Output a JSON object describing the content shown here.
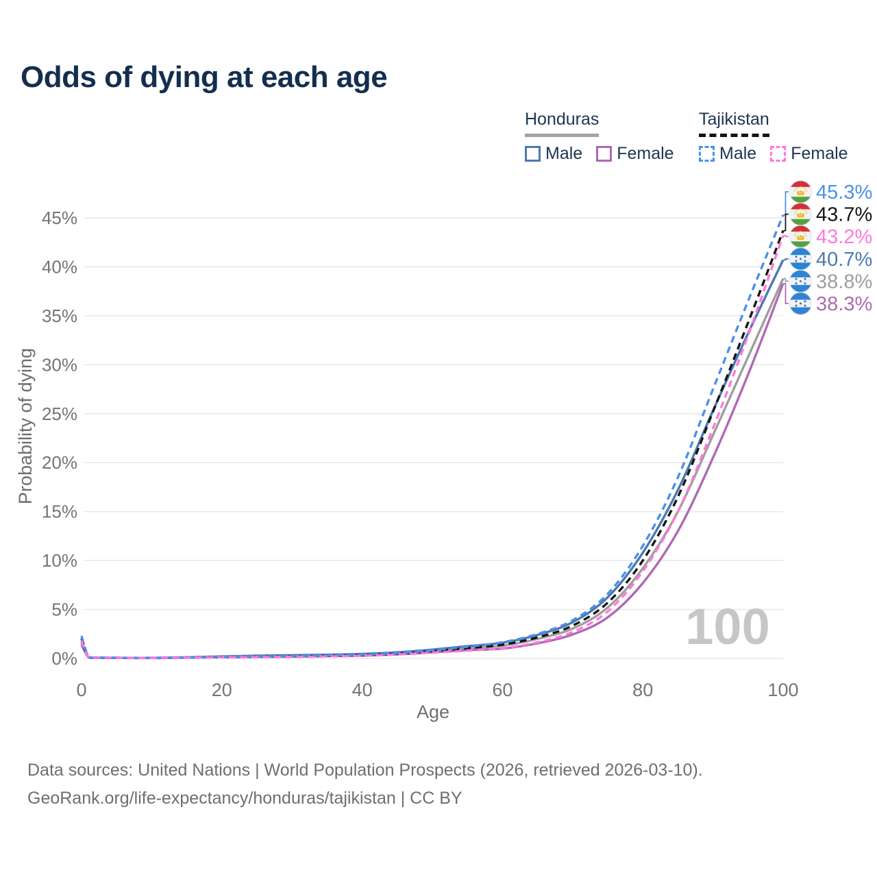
{
  "title": "Odds of dying at each age",
  "watermark": "100",
  "footer": {
    "line1": "Data sources: United Nations | World Population Prospects (2026, retrieved 2026-03-10).",
    "line2": "GeoRank.org/life-expectancy/honduras/tajikistan | CC BY"
  },
  "colors": {
    "title_text": "#132e4f",
    "legend_text": "#1d3553",
    "axis_text": "#747474",
    "axis_title_text": "#6e6e6e",
    "grid": "#e9e9e9",
    "watermark": "#c6c6c6",
    "honduras_male": "#4b79b2",
    "honduras_female": "#ae6ab2",
    "honduras_both": "#9e9e9e",
    "tajikistan_male": "#4b90ea",
    "tajikistan_female": "#ff78dc",
    "tajikistan_both": "#151515"
  },
  "legend": {
    "groups": [
      {
        "name": "Honduras",
        "line_style": "solid",
        "underline_color": "#a3a3a3",
        "items": [
          {
            "label": "Male",
            "color": "#4b79b2",
            "dashed": false
          },
          {
            "label": "Female",
            "color": "#ae6ab2",
            "dashed": false
          }
        ]
      },
      {
        "name": "Tajikistan",
        "line_style": "dashed",
        "underline_color": "#141414",
        "items": [
          {
            "label": "Male",
            "color": "#4b90ea",
            "dashed": true
          },
          {
            "label": "Female",
            "color": "#ff78dc",
            "dashed": true
          }
        ]
      }
    ]
  },
  "chart_data": {
    "type": "line",
    "title": "Odds of dying at each age",
    "xlabel": "Age",
    "ylabel": "Probability of dying",
    "xlim": [
      0,
      100
    ],
    "ylim": [
      0,
      48
    ],
    "grid": true,
    "x_ticks": [
      0,
      20,
      40,
      60,
      80,
      100
    ],
    "y_tick_values": [
      0,
      5,
      10,
      15,
      20,
      25,
      30,
      35,
      40,
      45
    ],
    "y_tick_labels": [
      "0%",
      "5%",
      "10%",
      "15%",
      "20%",
      "25%",
      "30%",
      "35%",
      "40%",
      "45%"
    ],
    "ages": [
      0,
      1,
      2,
      5,
      10,
      15,
      20,
      25,
      30,
      35,
      40,
      45,
      50,
      55,
      60,
      65,
      70,
      75,
      80,
      85,
      90,
      95,
      100
    ],
    "series": [
      {
        "id": "honduras-both",
        "country": "Honduras",
        "sex": "Both",
        "color": "#9e9e9e",
        "dashed": false,
        "flag": "honduras",
        "end_label": "38.8%",
        "values": [
          1.55,
          0.11,
          0.07,
          0.05,
          0.05,
          0.1,
          0.16,
          0.22,
          0.26,
          0.31,
          0.37,
          0.51,
          0.76,
          1.05,
          1.3,
          2.0,
          3.05,
          5.2,
          9.2,
          15.0,
          22.8,
          30.8,
          38.8
        ]
      },
      {
        "id": "honduras-female",
        "country": "Honduras",
        "sex": "Female",
        "color": "#ae6ab2",
        "dashed": false,
        "flag": "honduras",
        "end_label": "38.3%",
        "values": [
          1.4,
          0.1,
          0.06,
          0.05,
          0.04,
          0.08,
          0.12,
          0.16,
          0.19,
          0.24,
          0.29,
          0.41,
          0.62,
          0.85,
          1.0,
          1.55,
          2.45,
          4.2,
          7.7,
          13.0,
          20.5,
          29.0,
          38.3
        ]
      },
      {
        "id": "honduras-male",
        "country": "Honduras",
        "sex": "Male",
        "color": "#4b79b2",
        "dashed": false,
        "flag": "honduras",
        "end_label": "40.7%",
        "values": [
          1.7,
          0.12,
          0.08,
          0.06,
          0.06,
          0.12,
          0.2,
          0.28,
          0.33,
          0.38,
          0.46,
          0.62,
          0.9,
          1.25,
          1.6,
          2.4,
          3.7,
          6.25,
          10.8,
          17.2,
          25.3,
          33.2,
          40.7
        ]
      },
      {
        "id": "tajikistan-both",
        "country": "Tajikistan",
        "sex": "Both",
        "color": "#151515",
        "dashed": true,
        "flag": "tajikistan",
        "end_label": "43.7%",
        "values": [
          2.05,
          0.13,
          0.09,
          0.06,
          0.05,
          0.09,
          0.14,
          0.17,
          0.2,
          0.26,
          0.33,
          0.48,
          0.75,
          1.05,
          1.4,
          2.15,
          3.35,
          5.7,
          10.0,
          16.5,
          25.2,
          34.3,
          43.7
        ]
      },
      {
        "id": "tajikistan-male",
        "country": "Tajikistan",
        "sex": "Male",
        "color": "#4b90ea",
        "dashed": true,
        "flag": "tajikistan",
        "end_label": "45.3%",
        "values": [
          2.3,
          0.15,
          0.1,
          0.07,
          0.06,
          0.1,
          0.16,
          0.2,
          0.23,
          0.3,
          0.38,
          0.55,
          0.85,
          1.2,
          1.65,
          2.5,
          3.9,
          6.6,
          11.5,
          18.5,
          27.5,
          36.5,
          45.3
        ]
      },
      {
        "id": "tajikistan-female",
        "country": "Tajikistan",
        "sex": "Female",
        "color": "#ff78dc",
        "dashed": true,
        "flag": "tajikistan",
        "end_label": "43.2%",
        "values": [
          1.8,
          0.12,
          0.08,
          0.05,
          0.05,
          0.08,
          0.12,
          0.14,
          0.16,
          0.21,
          0.27,
          0.4,
          0.6,
          0.8,
          1.05,
          1.65,
          2.7,
          4.8,
          8.9,
          15.0,
          23.5,
          33.0,
          43.2
        ]
      }
    ],
    "legend_position": "top-right",
    "flag_colors": {
      "tajikistan": {
        "red": "#d0303d",
        "white": "#f2f2f2",
        "green": "#55a043",
        "gold": "#ecb926"
      },
      "honduras": {
        "blue": "#2f83d3",
        "white": "#f2f2f2",
        "star": "#2a6cc0"
      }
    }
  }
}
